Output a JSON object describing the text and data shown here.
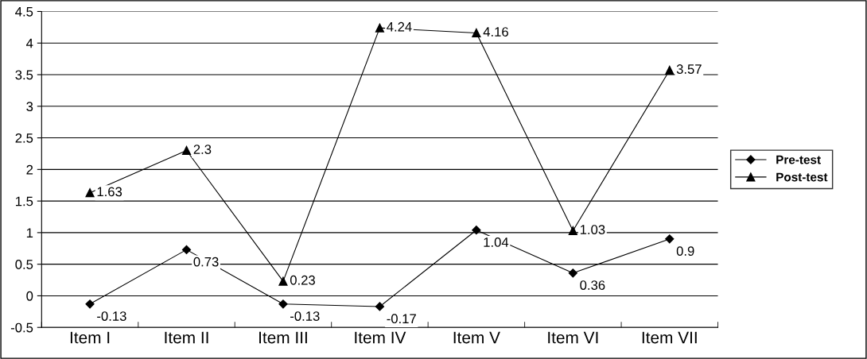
{
  "chart_data": {
    "type": "line",
    "categories": [
      "Item I",
      "Item II",
      "Item III",
      "Item IV",
      "Item V",
      "Item VI",
      "Item VII"
    ],
    "series": [
      {
        "name": "Pre-test",
        "color": "#000000",
        "marker": "diamond",
        "values": [
          -0.13,
          0.73,
          -0.13,
          -0.17,
          1.04,
          0.36,
          0.9
        ]
      },
      {
        "name": "Post-test",
        "color": "#000000",
        "marker": "triangle",
        "values": [
          1.63,
          2.3,
          0.23,
          4.24,
          4.16,
          1.03,
          3.57
        ]
      }
    ],
    "ylim": [
      -0.5,
      4.5
    ],
    "yticks": [
      -0.5,
      0,
      0.5,
      1,
      1.5,
      2,
      2.5,
      3,
      3.5,
      4,
      4.5
    ],
    "grid": "y",
    "legend": "right",
    "data_labels": true,
    "line_style": "solid"
  }
}
